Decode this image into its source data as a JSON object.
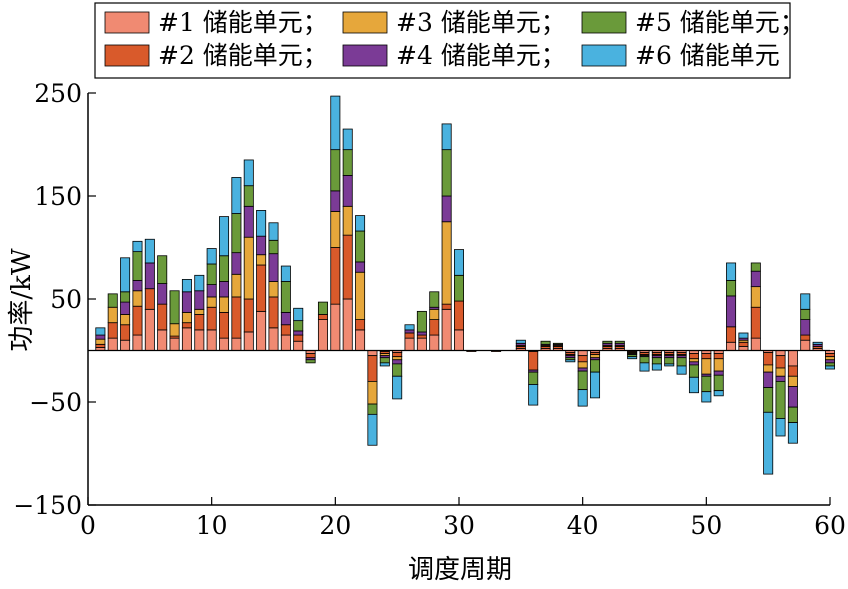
{
  "chart_data": {
    "type": "bar",
    "stacked": true,
    "xlabel": "调度周期",
    "ylabel": "功率/kW",
    "xlim": [
      0,
      60
    ],
    "ylim": [
      -150,
      250
    ],
    "xticks": [
      0,
      10,
      20,
      30,
      40,
      50,
      60
    ],
    "yticks": [
      -150,
      -50,
      50,
      150,
      250
    ],
    "legend_position": "top",
    "grid": false,
    "x": [
      1,
      2,
      3,
      4,
      5,
      6,
      7,
      8,
      9,
      10,
      11,
      12,
      13,
      14,
      15,
      16,
      17,
      18,
      19,
      20,
      21,
      22,
      23,
      24,
      25,
      26,
      27,
      28,
      29,
      30,
      31,
      32,
      33,
      34,
      35,
      36,
      37,
      38,
      39,
      40,
      41,
      42,
      43,
      44,
      45,
      46,
      47,
      48,
      49,
      50,
      51,
      52,
      53,
      54,
      55,
      56,
      57,
      58,
      59,
      60
    ],
    "series": [
      {
        "name": "#1 储能单元；",
        "color": "#f08a72",
        "values": [
          3,
          12,
          10,
          15,
          40,
          20,
          12,
          22,
          20,
          20,
          12,
          12,
          18,
          38,
          22,
          15,
          9,
          -3,
          30,
          45,
          50,
          20,
          -5,
          -1,
          -2,
          12,
          12,
          15,
          40,
          20,
          0,
          0,
          0,
          0,
          2,
          -1,
          2,
          2,
          -2,
          -5,
          -2,
          2,
          2,
          -1,
          -2,
          -2,
          -2,
          -2,
          -3,
          -3,
          -3,
          8,
          4,
          12,
          -2,
          -5,
          -15,
          10,
          2,
          -3
        ]
      },
      {
        "name": "#2 储能单元；",
        "color": "#d95a2b",
        "values": [
          3,
          15,
          15,
          28,
          20,
          25,
          2,
          5,
          15,
          22,
          25,
          40,
          32,
          45,
          30,
          10,
          6,
          -4,
          5,
          55,
          62,
          10,
          -25,
          -2,
          -4,
          5,
          3,
          15,
          5,
          28,
          -1,
          0,
          -1,
          0,
          2,
          -18,
          2,
          2,
          -2,
          -6,
          -2,
          2,
          2,
          -1,
          -2,
          -2,
          -2,
          -2,
          -5,
          -5,
          -5,
          15,
          4,
          30,
          -12,
          -12,
          -10,
          5,
          2,
          -3
        ]
      },
      {
        "name": "#3 储能单元；",
        "color": "#e6a73b",
        "values": [
          5,
          15,
          10,
          15,
          0,
          0,
          12,
          10,
          5,
          10,
          15,
          22,
          60,
          10,
          15,
          0,
          0,
          0,
          0,
          35,
          28,
          46,
          -22,
          -2,
          -3,
          0,
          0,
          10,
          80,
          0,
          0,
          0,
          0,
          0,
          1,
          0,
          1,
          1,
          -1,
          -6,
          -3,
          1,
          1,
          -1,
          -1,
          -1,
          -1,
          -1,
          -3,
          -15,
          -12,
          0,
          2,
          20,
          -7,
          -8,
          -10,
          0,
          0,
          -3
        ]
      },
      {
        "name": "#4 储能单元；",
        "color": "#7b3b96",
        "values": [
          4,
          0,
          12,
          10,
          25,
          20,
          0,
          20,
          18,
          12,
          15,
          21,
          30,
          18,
          27,
          12,
          4,
          -2,
          0,
          20,
          30,
          10,
          0,
          -2,
          -4,
          3,
          3,
          2,
          25,
          0,
          0,
          0,
          0,
          0,
          2,
          -2,
          1,
          1,
          -2,
          -3,
          -2,
          2,
          2,
          -1,
          -1,
          -2,
          -2,
          -2,
          -3,
          -2,
          -4,
          30,
          2,
          15,
          -15,
          -5,
          -20,
          15,
          2,
          -3
        ]
      },
      {
        "name": "#5 储能单元；",
        "color": "#6a9a3a",
        "values": [
          0,
          13,
          10,
          28,
          0,
          27,
          32,
          0,
          0,
          20,
          25,
          38,
          20,
          0,
          13,
          30,
          10,
          -3,
          12,
          40,
          25,
          30,
          -10,
          -5,
          -12,
          0,
          20,
          15,
          45,
          25,
          0,
          0,
          0,
          0,
          0,
          -12,
          3,
          1,
          -2,
          -18,
          -12,
          2,
          2,
          -2,
          -6,
          -6,
          -6,
          -8,
          -12,
          -15,
          -15,
          15,
          0,
          8,
          -24,
          -36,
          -15,
          10,
          0,
          -3
        ]
      },
      {
        "name": "#6 储能单元",
        "color": "#4ab2df",
        "values": [
          7,
          0,
          33,
          10,
          23,
          0,
          0,
          12,
          15,
          15,
          38,
          35,
          25,
          25,
          17,
          15,
          12,
          0,
          0,
          52,
          20,
          15,
          -30,
          -3,
          -22,
          5,
          0,
          0,
          25,
          25,
          0,
          0,
          0,
          0,
          3,
          -20,
          0,
          0,
          -2,
          -16,
          -25,
          0,
          0,
          -2,
          -8,
          -6,
          -2,
          -8,
          -15,
          -10,
          -5,
          17,
          5,
          0,
          -60,
          -17,
          -20,
          15,
          2,
          -3
        ]
      }
    ]
  }
}
